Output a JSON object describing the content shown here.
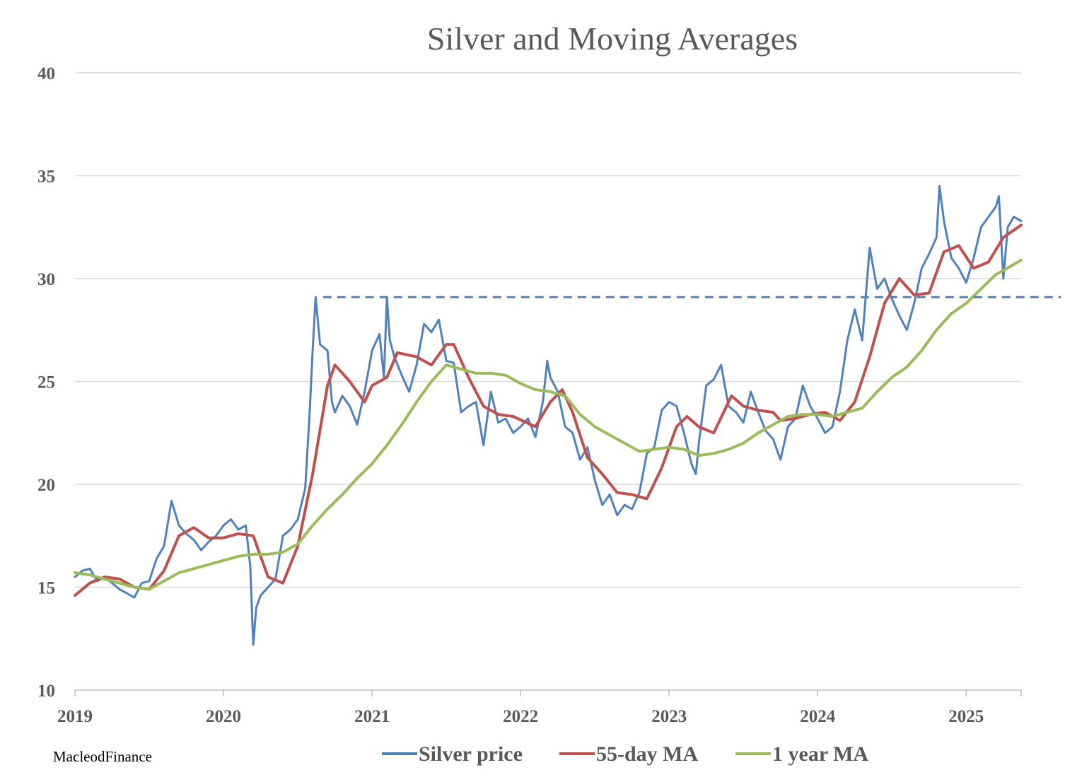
{
  "chart_data": {
    "type": "line",
    "title": "Silver and Moving Averages",
    "xlabel": "",
    "ylabel": "",
    "credit": "MacleodFinance",
    "xlim": [
      2019.0,
      2025.37
    ],
    "ylim": [
      10,
      40
    ],
    "y_ticks": [
      "40",
      "35",
      "30",
      "25",
      "20",
      "15",
      "10"
    ],
    "x_ticks": [
      "2019",
      "2020",
      "2021",
      "2022",
      "2023",
      "2024",
      "2025"
    ],
    "grid": "horizontal",
    "legend_position": "bottom",
    "reference_line": {
      "value": 29.1,
      "from": 2020.67,
      "style": "dashed"
    },
    "series": [
      {
        "name": "Silver price",
        "color": "#4F81BD",
        "points": [
          [
            2019.0,
            15.5
          ],
          [
            2019.05,
            15.8
          ],
          [
            2019.1,
            15.9
          ],
          [
            2019.15,
            15.3
          ],
          [
            2019.2,
            15.5
          ],
          [
            2019.25,
            15.2
          ],
          [
            2019.3,
            14.9
          ],
          [
            2019.35,
            14.7
          ],
          [
            2019.4,
            14.5
          ],
          [
            2019.45,
            15.2
          ],
          [
            2019.5,
            15.3
          ],
          [
            2019.55,
            16.4
          ],
          [
            2019.6,
            17.0
          ],
          [
            2019.65,
            19.2
          ],
          [
            2019.7,
            18.0
          ],
          [
            2019.75,
            17.6
          ],
          [
            2019.8,
            17.3
          ],
          [
            2019.85,
            16.8
          ],
          [
            2019.9,
            17.2
          ],
          [
            2019.95,
            17.5
          ],
          [
            2020.0,
            18.0
          ],
          [
            2020.05,
            18.3
          ],
          [
            2020.1,
            17.8
          ],
          [
            2020.15,
            18.0
          ],
          [
            2020.18,
            16.0
          ],
          [
            2020.2,
            12.2
          ],
          [
            2020.22,
            14.0
          ],
          [
            2020.25,
            14.6
          ],
          [
            2020.3,
            15.0
          ],
          [
            2020.35,
            15.4
          ],
          [
            2020.4,
            17.5
          ],
          [
            2020.45,
            17.8
          ],
          [
            2020.5,
            18.3
          ],
          [
            2020.55,
            19.8
          ],
          [
            2020.58,
            23.5
          ],
          [
            2020.6,
            26.5
          ],
          [
            2020.62,
            29.1
          ],
          [
            2020.65,
            26.8
          ],
          [
            2020.7,
            26.5
          ],
          [
            2020.73,
            24.0
          ],
          [
            2020.75,
            23.5
          ],
          [
            2020.8,
            24.3
          ],
          [
            2020.85,
            23.8
          ],
          [
            2020.9,
            22.9
          ],
          [
            2020.95,
            24.5
          ],
          [
            2021.0,
            26.5
          ],
          [
            2021.05,
            27.3
          ],
          [
            2021.08,
            25.2
          ],
          [
            2021.1,
            29.1
          ],
          [
            2021.12,
            27.0
          ],
          [
            2021.15,
            26.2
          ],
          [
            2021.2,
            25.3
          ],
          [
            2021.25,
            24.5
          ],
          [
            2021.3,
            25.8
          ],
          [
            2021.35,
            27.8
          ],
          [
            2021.4,
            27.4
          ],
          [
            2021.45,
            28.0
          ],
          [
            2021.5,
            26.0
          ],
          [
            2021.55,
            25.9
          ],
          [
            2021.6,
            23.5
          ],
          [
            2021.65,
            23.8
          ],
          [
            2021.7,
            24.0
          ],
          [
            2021.75,
            21.9
          ],
          [
            2021.8,
            24.5
          ],
          [
            2021.85,
            23.0
          ],
          [
            2021.9,
            23.2
          ],
          [
            2021.95,
            22.5
          ],
          [
            2022.0,
            22.8
          ],
          [
            2022.05,
            23.2
          ],
          [
            2022.1,
            22.3
          ],
          [
            2022.15,
            24.0
          ],
          [
            2022.18,
            26.0
          ],
          [
            2022.2,
            25.2
          ],
          [
            2022.25,
            24.5
          ],
          [
            2022.3,
            22.8
          ],
          [
            2022.35,
            22.5
          ],
          [
            2022.4,
            21.2
          ],
          [
            2022.45,
            21.8
          ],
          [
            2022.5,
            20.2
          ],
          [
            2022.55,
            19.0
          ],
          [
            2022.6,
            19.5
          ],
          [
            2022.65,
            18.5
          ],
          [
            2022.7,
            19.0
          ],
          [
            2022.75,
            18.8
          ],
          [
            2022.8,
            19.6
          ],
          [
            2022.85,
            21.5
          ],
          [
            2022.9,
            21.8
          ],
          [
            2022.95,
            23.6
          ],
          [
            2023.0,
            24.0
          ],
          [
            2023.05,
            23.8
          ],
          [
            2023.1,
            22.5
          ],
          [
            2023.15,
            21.0
          ],
          [
            2023.18,
            20.5
          ],
          [
            2023.2,
            22.0
          ],
          [
            2023.25,
            24.8
          ],
          [
            2023.3,
            25.1
          ],
          [
            2023.35,
            25.8
          ],
          [
            2023.4,
            23.8
          ],
          [
            2023.45,
            23.5
          ],
          [
            2023.5,
            23.0
          ],
          [
            2023.55,
            24.5
          ],
          [
            2023.6,
            23.5
          ],
          [
            2023.65,
            22.6
          ],
          [
            2023.7,
            22.2
          ],
          [
            2023.75,
            21.2
          ],
          [
            2023.8,
            22.8
          ],
          [
            2023.85,
            23.2
          ],
          [
            2023.9,
            24.8
          ],
          [
            2023.95,
            23.8
          ],
          [
            2024.0,
            23.2
          ],
          [
            2024.05,
            22.5
          ],
          [
            2024.1,
            22.8
          ],
          [
            2024.15,
            24.5
          ],
          [
            2024.2,
            27.0
          ],
          [
            2024.25,
            28.5
          ],
          [
            2024.3,
            27.0
          ],
          [
            2024.35,
            31.5
          ],
          [
            2024.4,
            29.5
          ],
          [
            2024.45,
            30.0
          ],
          [
            2024.5,
            29.0
          ],
          [
            2024.55,
            28.2
          ],
          [
            2024.6,
            27.5
          ],
          [
            2024.65,
            28.8
          ],
          [
            2024.7,
            30.5
          ],
          [
            2024.75,
            31.2
          ],
          [
            2024.8,
            32.0
          ],
          [
            2024.82,
            34.5
          ],
          [
            2024.85,
            32.8
          ],
          [
            2024.9,
            31.0
          ],
          [
            2024.95,
            30.5
          ],
          [
            2025.0,
            29.8
          ],
          [
            2025.05,
            31.0
          ],
          [
            2025.1,
            32.5
          ],
          [
            2025.15,
            33.0
          ],
          [
            2025.2,
            33.5
          ],
          [
            2025.22,
            34.0
          ],
          [
            2025.25,
            30.0
          ],
          [
            2025.28,
            32.5
          ],
          [
            2025.32,
            33.0
          ],
          [
            2025.37,
            32.8
          ]
        ]
      },
      {
        "name": "55-day MA",
        "color": "#C0504D",
        "points": [
          [
            2019.0,
            14.6
          ],
          [
            2019.1,
            15.2
          ],
          [
            2019.2,
            15.5
          ],
          [
            2019.3,
            15.4
          ],
          [
            2019.4,
            15.0
          ],
          [
            2019.5,
            14.9
          ],
          [
            2019.6,
            15.8
          ],
          [
            2019.7,
            17.5
          ],
          [
            2019.8,
            17.9
          ],
          [
            2019.9,
            17.4
          ],
          [
            2020.0,
            17.4
          ],
          [
            2020.1,
            17.6
          ],
          [
            2020.2,
            17.5
          ],
          [
            2020.3,
            15.5
          ],
          [
            2020.4,
            15.2
          ],
          [
            2020.5,
            17.0
          ],
          [
            2020.6,
            20.5
          ],
          [
            2020.7,
            24.8
          ],
          [
            2020.75,
            25.8
          ],
          [
            2020.85,
            25.0
          ],
          [
            2020.95,
            24.0
          ],
          [
            2021.0,
            24.8
          ],
          [
            2021.1,
            25.2
          ],
          [
            2021.17,
            26.4
          ],
          [
            2021.3,
            26.2
          ],
          [
            2021.4,
            25.8
          ],
          [
            2021.5,
            26.8
          ],
          [
            2021.55,
            26.8
          ],
          [
            2021.65,
            25.2
          ],
          [
            2021.75,
            23.8
          ],
          [
            2021.85,
            23.4
          ],
          [
            2021.95,
            23.3
          ],
          [
            2022.1,
            22.8
          ],
          [
            2022.2,
            24.0
          ],
          [
            2022.28,
            24.6
          ],
          [
            2022.35,
            23.5
          ],
          [
            2022.45,
            21.3
          ],
          [
            2022.55,
            20.5
          ],
          [
            2022.65,
            19.6
          ],
          [
            2022.75,
            19.5
          ],
          [
            2022.85,
            19.3
          ],
          [
            2022.95,
            20.8
          ],
          [
            2023.05,
            22.8
          ],
          [
            2023.12,
            23.3
          ],
          [
            2023.2,
            22.8
          ],
          [
            2023.3,
            22.5
          ],
          [
            2023.42,
            24.3
          ],
          [
            2023.5,
            23.8
          ],
          [
            2023.6,
            23.6
          ],
          [
            2023.7,
            23.5
          ],
          [
            2023.75,
            23.1
          ],
          [
            2023.85,
            23.2
          ],
          [
            2023.95,
            23.4
          ],
          [
            2024.05,
            23.5
          ],
          [
            2024.15,
            23.1
          ],
          [
            2024.25,
            24.0
          ],
          [
            2024.35,
            26.2
          ],
          [
            2024.45,
            28.8
          ],
          [
            2024.55,
            30.0
          ],
          [
            2024.65,
            29.2
          ],
          [
            2024.75,
            29.3
          ],
          [
            2024.85,
            31.3
          ],
          [
            2024.95,
            31.6
          ],
          [
            2025.05,
            30.5
          ],
          [
            2025.15,
            30.8
          ],
          [
            2025.25,
            32.0
          ],
          [
            2025.37,
            32.6
          ]
        ]
      },
      {
        "name": "1 year MA",
        "color": "#9BBB59",
        "points": [
          [
            2019.0,
            15.7
          ],
          [
            2019.1,
            15.6
          ],
          [
            2019.2,
            15.4
          ],
          [
            2019.3,
            15.2
          ],
          [
            2019.4,
            15.0
          ],
          [
            2019.5,
            14.9
          ],
          [
            2019.6,
            15.3
          ],
          [
            2019.7,
            15.7
          ],
          [
            2019.8,
            15.9
          ],
          [
            2019.9,
            16.1
          ],
          [
            2020.0,
            16.3
          ],
          [
            2020.1,
            16.5
          ],
          [
            2020.2,
            16.6
          ],
          [
            2020.3,
            16.6
          ],
          [
            2020.4,
            16.7
          ],
          [
            2020.5,
            17.1
          ],
          [
            2020.6,
            18.0
          ],
          [
            2020.7,
            18.8
          ],
          [
            2020.8,
            19.5
          ],
          [
            2020.9,
            20.3
          ],
          [
            2021.0,
            21.0
          ],
          [
            2021.1,
            21.9
          ],
          [
            2021.2,
            22.9
          ],
          [
            2021.3,
            24.0
          ],
          [
            2021.4,
            25.0
          ],
          [
            2021.5,
            25.8
          ],
          [
            2021.6,
            25.6
          ],
          [
            2021.7,
            25.4
          ],
          [
            2021.8,
            25.4
          ],
          [
            2021.9,
            25.3
          ],
          [
            2022.0,
            24.9
          ],
          [
            2022.1,
            24.6
          ],
          [
            2022.2,
            24.5
          ],
          [
            2022.3,
            24.3
          ],
          [
            2022.4,
            23.4
          ],
          [
            2022.5,
            22.8
          ],
          [
            2022.6,
            22.4
          ],
          [
            2022.7,
            22.0
          ],
          [
            2022.8,
            21.6
          ],
          [
            2022.9,
            21.7
          ],
          [
            2023.0,
            21.8
          ],
          [
            2023.1,
            21.7
          ],
          [
            2023.2,
            21.4
          ],
          [
            2023.3,
            21.5
          ],
          [
            2023.4,
            21.7
          ],
          [
            2023.5,
            22.0
          ],
          [
            2023.6,
            22.5
          ],
          [
            2023.7,
            22.9
          ],
          [
            2023.8,
            23.3
          ],
          [
            2023.9,
            23.4
          ],
          [
            2024.0,
            23.4
          ],
          [
            2024.1,
            23.3
          ],
          [
            2024.2,
            23.5
          ],
          [
            2024.3,
            23.7
          ],
          [
            2024.4,
            24.5
          ],
          [
            2024.5,
            25.2
          ],
          [
            2024.6,
            25.7
          ],
          [
            2024.7,
            26.5
          ],
          [
            2024.8,
            27.5
          ],
          [
            2024.9,
            28.3
          ],
          [
            2025.0,
            28.8
          ],
          [
            2025.1,
            29.5
          ],
          [
            2025.2,
            30.2
          ],
          [
            2025.3,
            30.6
          ],
          [
            2025.37,
            30.9
          ]
        ]
      }
    ]
  }
}
